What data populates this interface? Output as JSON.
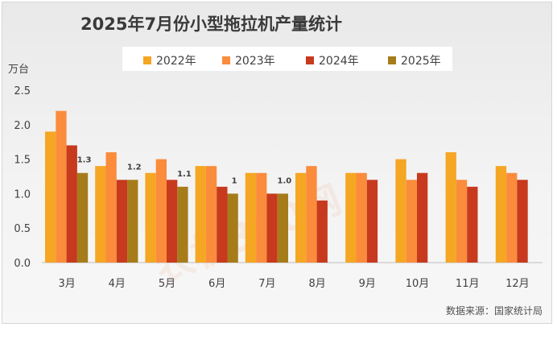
{
  "chart_data": {
    "type": "bar",
    "title": "2025年7月份小型拖拉机产量统计",
    "ylabel": "万台",
    "source": "数据来源：国家统计局",
    "watermark": "农机360网",
    "categories": [
      "3月",
      "4月",
      "5月",
      "6月",
      "7月",
      "8月",
      "9月",
      "10月",
      "11月",
      "12月"
    ],
    "ylim": [
      0,
      2.5
    ],
    "yticks": [
      "0.0",
      "0.5",
      "1.0",
      "1.5",
      "2.0",
      "2.5"
    ],
    "grid": false,
    "legend_position": "top",
    "series": [
      {
        "name": "2022年",
        "color": "#f5a623",
        "values": [
          1.9,
          1.4,
          1.3,
          1.4,
          1.3,
          1.3,
          1.3,
          1.5,
          1.6,
          1.4
        ]
      },
      {
        "name": "2023年",
        "color": "#fa8c3c",
        "values": [
          2.2,
          1.6,
          1.5,
          1.4,
          1.3,
          1.4,
          1.3,
          1.2,
          1.2,
          1.3
        ]
      },
      {
        "name": "2024年",
        "color": "#c73a1e",
        "values": [
          1.7,
          1.2,
          1.2,
          1.1,
          1.0,
          0.9,
          1.2,
          1.3,
          1.1,
          1.2
        ]
      },
      {
        "name": "2025年",
        "color": "#a67c1b",
        "values": [
          1.3,
          1.2,
          1.1,
          1.0,
          1.0,
          null,
          null,
          null,
          null,
          null
        ],
        "labels": [
          "1.3",
          "1.2",
          "1.1",
          "1",
          "1.0",
          "",
          "",
          "",
          "",
          ""
        ]
      }
    ]
  }
}
